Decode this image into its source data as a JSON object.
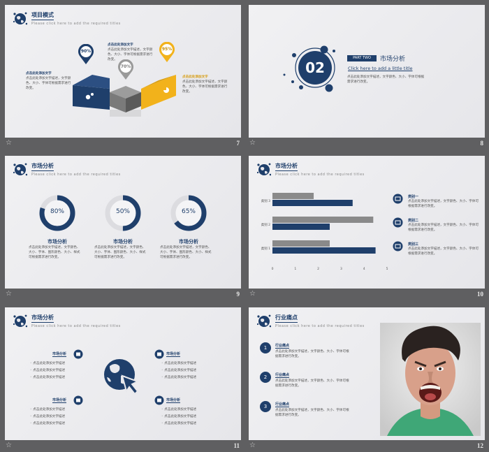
{
  "common": {
    "subtitle": "Please click here to add the required titles",
    "body": "点击此处添加文字描述，文字颜色、大小、字体可根据需求进行改变。"
  },
  "s7": {
    "num": "7",
    "title": "项目模式",
    "pct": [
      "90%",
      "70%",
      "95%"
    ],
    "label_left": "点击此处添加文字",
    "label_top": "点击此处添加文字",
    "label_right": "点击此处添加文字",
    "text_left": "点击此处添加文字描述，文字颜色、大小、字体可根据需求进行改变。",
    "text_top": "点击此处添加文字描述，文字颜色、大小、字体可根据需求进行改变。",
    "text_right": "点击此处添加文字描述，文字颜色、大小、字体可根据需求进行改变。"
  },
  "s8": {
    "num": "8",
    "big": "02",
    "part": "PART  TWO",
    "title": "市场分析",
    "link": "Click here to add a little title",
    "desc": "点击此处添加文字描述，文字颜色、大小、字体可根据需求进行改变。"
  },
  "s9": {
    "num": "9",
    "title": "市场分析",
    "rings": [
      {
        "value": 80,
        "label": "80%",
        "head": "市场分析",
        "text": "点击此处添加文字描述，文字颜色、大小、字体、图形颜色、大小、样式可根据需求进行改变。"
      },
      {
        "value": 50,
        "label": "50%",
        "head": "市场分析",
        "text": "点击此处添加文字描述，文字颜色、大小、字体、图形颜色、大小、样式可根据需求进行改变。"
      },
      {
        "value": 65,
        "label": "65%",
        "head": "市场分析",
        "text": "点击此处添加文字描述，文字颜色、大小、字体、图形颜色、大小、样式可根据需求进行改变。"
      }
    ]
  },
  "s10": {
    "num": "10",
    "title": "市场分析",
    "chart_data": {
      "type": "bar",
      "orientation": "horizontal",
      "categories": [
        "类别 3",
        "类别 2",
        "类别 1"
      ],
      "series": [
        {
          "values": [
            1.8,
            4.4,
            2.5
          ],
          "color": "#8a8a8a"
        },
        {
          "values": [
            3.5,
            2.5,
            4.5
          ],
          "color": "#1f3f6b"
        }
      ],
      "xticks": [
        "0",
        "1",
        "2",
        "3",
        "4",
        "5"
      ],
      "xlim": [
        0,
        5
      ]
    },
    "items": [
      {
        "head": "类别一",
        "text": "点击此处添加文字描述，文字颜色、大小、字体可根据需求进行改变。"
      },
      {
        "head": "类别二",
        "text": "点击此处添加文字描述，文字颜色、大小、字体可根据需求进行改变。"
      },
      {
        "head": "类别三",
        "text": "点击此处添加文字描述，文字颜色、大小、字体可根据需求进行改变。"
      }
    ]
  },
  "s11": {
    "num": "11",
    "title": "市场分析",
    "group_head": "市场分析",
    "line": "点击此处添加文字描述"
  },
  "s12": {
    "num": "12",
    "title": "行业痛点",
    "items": [
      {
        "n": "1",
        "head": "行业痛点",
        "text": "点击此处添加文字描述，文字颜色、大小、字体可根据需求进行改变。"
      },
      {
        "n": "2",
        "head": "行业痛点",
        "text": "点击此处添加文字描述，文字颜色、大小、字体可根据需求进行改变。"
      },
      {
        "n": "3",
        "head": "行业痛点",
        "text": "点击此处添加文字描述，文字颜色、大小、字体可根据需求进行改变。"
      }
    ]
  },
  "colors": {
    "navy": "#1f3f6b",
    "gold": "#f2b21b",
    "gray": "#8a8a8a"
  }
}
